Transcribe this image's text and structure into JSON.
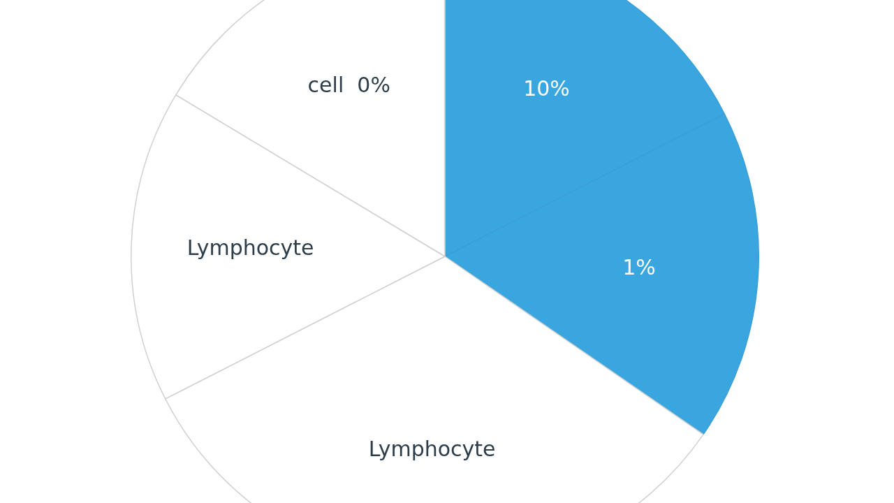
{
  "chart_data": {
    "type": "pie",
    "categories": [
      "10%",
      "1%",
      "Lymphocyte",
      "Lymphocyte",
      "cell  0%"
    ],
    "values": [
      17.5,
      17.1,
      32.9,
      16.1,
      16.4
    ],
    "colors": [
      "#3aa6e0",
      "#3aa6e0",
      "#ffffff",
      "#ffffff",
      "#ffffff"
    ],
    "legend": false
  }
}
